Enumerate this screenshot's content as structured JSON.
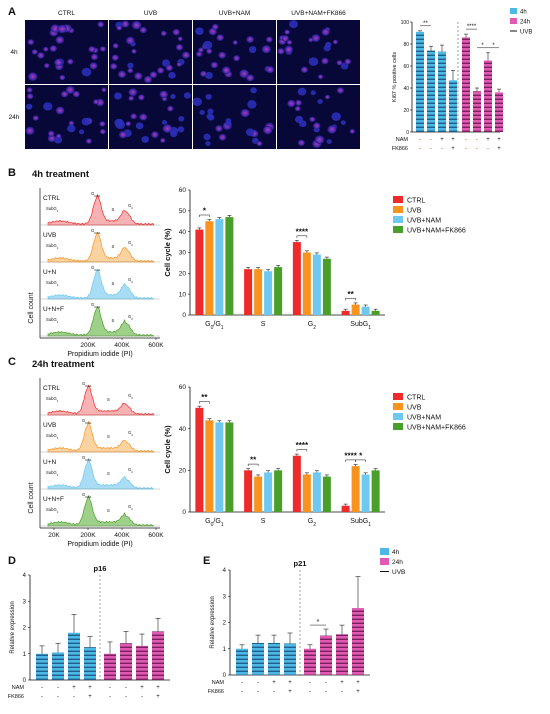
{
  "panels": {
    "A": "A",
    "B": "B",
    "C": "C",
    "D": "D",
    "E": "E"
  },
  "colors": {
    "ctrl": "#ee2b2b",
    "uvb": "#f7931e",
    "nam": "#6fc8f0",
    "fk866": "#4a9e2a",
    "blue4h": "#4bb8e6",
    "pink24h": "#e05ab4",
    "nuclei": "#2a2fb8",
    "ki67": "#d63ca4"
  },
  "micrographs": {
    "columns": [
      "CTRL",
      "UVB",
      "UVB+NAM",
      "UVB+NAM+FK866"
    ],
    "rows": [
      "4h",
      "24h"
    ]
  },
  "ki67_chart": {
    "ylabel": "Ki67 % positive cells",
    "yticks": [
      "0",
      "20",
      "40",
      "60",
      "80",
      "100"
    ],
    "ylim": [
      0,
      100
    ],
    "legend": [
      "4h",
      "24h",
      "UVB"
    ],
    "groups": [
      {
        "name": "4h",
        "values": [
          91,
          74,
          73,
          47
        ],
        "errors": [
          1,
          4,
          6,
          9
        ]
      },
      {
        "name": "24h",
        "values": [
          86,
          37,
          65,
          36
        ],
        "errors": [
          3,
          3,
          7,
          3
        ]
      }
    ],
    "sig": [
      {
        "text": "**",
        "group": 0,
        "from": 0,
        "to": 1
      },
      {
        "text": "****",
        "group": 1,
        "from": 0,
        "to": 1
      },
      {
        "text": "*",
        "group": 1,
        "from": 1,
        "to": 2
      },
      {
        "text": "*",
        "group": 1,
        "from": 2,
        "to": 3
      }
    ],
    "table": {
      "rows": [
        {
          "label": "NAM",
          "cells": [
            "-",
            "-",
            "+",
            "+",
            "-",
            "-",
            "+",
            "+"
          ]
        },
        {
          "label": "FK866",
          "cells": [
            "-",
            "-",
            "-",
            "+",
            "-",
            "-",
            "-",
            "+"
          ]
        }
      ]
    }
  },
  "section_b": {
    "title": "4h treatment",
    "hist_labels": [
      "CTRL",
      "UVB",
      "U+N",
      "U+N+F"
    ],
    "hist_ylabel": "Cell count",
    "hist_xlabel": "Propidium iodide (PI)",
    "hist_xticks": [
      "200K",
      "400K",
      "600K"
    ],
    "peak_labels": [
      "SubG1",
      "G0/G1",
      "S",
      "G2"
    ]
  },
  "section_c": {
    "title": "24h treatment",
    "hist_labels": [
      "CTRL",
      "UVB",
      "U+N",
      "U+N+F"
    ],
    "hist_ylabel": "Cell count",
    "hist_xlabel": "Propidium iodide (PI)",
    "hist_xticks": [
      "20K",
      "200K",
      "400K",
      "600K"
    ],
    "peak_labels": [
      "SubG1",
      "G0/G1",
      "S",
      "G2"
    ]
  },
  "chart_data": [
    {
      "type": "bar",
      "id": "cellcycle-4h",
      "ylabel": "Cell cycle (%)",
      "ylim": [
        0,
        60
      ],
      "yticks": [
        0,
        10,
        20,
        30,
        40,
        50,
        60
      ],
      "categories": [
        "G0/G1",
        "S",
        "G2",
        "SubG1"
      ],
      "series": [
        {
          "name": "CTRL",
          "values": [
            41,
            22,
            35,
            2
          ]
        },
        {
          "name": "UVB",
          "values": [
            45,
            22,
            30,
            5
          ]
        },
        {
          "name": "UVB+NAM",
          "values": [
            46,
            21,
            29,
            4
          ]
        },
        {
          "name": "UVB+NAM+FK866",
          "values": [
            47,
            23,
            27,
            2
          ]
        }
      ],
      "sig": [
        {
          "text": "*",
          "category": 0,
          "from": 0,
          "to": 1
        },
        {
          "text": "****",
          "category": 2,
          "from": 0,
          "to": 1
        },
        {
          "text": "**",
          "category": 3,
          "from": 0,
          "to": 1
        }
      ]
    },
    {
      "type": "bar",
      "id": "cellcycle-24h",
      "ylabel": "Cell cycle (%)",
      "ylim": [
        0,
        60
      ],
      "yticks": [
        0,
        20,
        40,
        60
      ],
      "categories": [
        "G0/G1",
        "S",
        "G2",
        "SubG1"
      ],
      "series": [
        {
          "name": "CTRL",
          "values": [
            50,
            20,
            27,
            3
          ]
        },
        {
          "name": "UVB",
          "values": [
            44,
            17,
            18,
            22
          ]
        },
        {
          "name": "UVB+NAM",
          "values": [
            43,
            19,
            19,
            18
          ]
        },
        {
          "name": "UVB+NAM+FK866",
          "values": [
            43,
            20,
            17,
            20
          ]
        }
      ],
      "sig": [
        {
          "text": "**",
          "category": 0,
          "from": 0,
          "to": 1
        },
        {
          "text": "**",
          "category": 1,
          "from": 0,
          "to": 1
        },
        {
          "text": "****",
          "category": 2,
          "from": 0,
          "to": 1
        },
        {
          "text": "****",
          "category": 3,
          "from": 0,
          "to": 1
        },
        {
          "text": "*",
          "category": 3,
          "from": 1,
          "to": 2
        }
      ]
    },
    {
      "type": "bar",
      "id": "p16",
      "title": "p16",
      "ylabel": "Relative expression",
      "ylim": [
        0,
        4
      ],
      "yticks": [
        "0",
        "1",
        "2",
        "3",
        "4"
      ],
      "groups": [
        {
          "name": "4h",
          "values": [
            1.0,
            1.05,
            1.8,
            1.25
          ],
          "errors": [
            0.3,
            0.35,
            0.7,
            0.4
          ]
        },
        {
          "name": "24h",
          "values": [
            1.0,
            1.4,
            1.3,
            1.85
          ],
          "errors": [
            0.45,
            0.45,
            0.45,
            0.5
          ]
        }
      ],
      "table": {
        "rows": [
          {
            "label": "NAM",
            "cells": [
              "-",
              "-",
              "+",
              "+",
              "-",
              "-",
              "+",
              "+"
            ]
          },
          {
            "label": "FK866",
            "cells": [
              "-",
              "-",
              "-",
              "+",
              "-",
              "-",
              "-",
              "+"
            ]
          }
        ]
      }
    },
    {
      "type": "bar",
      "id": "p21",
      "title": "p21",
      "ylabel": "Relative expression",
      "ylim": [
        0,
        4
      ],
      "yticks": [
        "0",
        "1",
        "2",
        "3",
        "4"
      ],
      "legend": [
        "4h",
        "24h",
        "UVB"
      ],
      "groups": [
        {
          "name": "4h",
          "values": [
            1.0,
            1.22,
            1.22,
            1.2
          ],
          "errors": [
            0.15,
            0.3,
            0.3,
            0.4
          ]
        },
        {
          "name": "24h",
          "values": [
            1.0,
            1.5,
            1.55,
            2.55
          ],
          "errors": [
            0.15,
            0.25,
            0.35,
            1.2
          ]
        }
      ],
      "sig": [
        {
          "text": "*",
          "group": 1,
          "from": 0,
          "to": 1
        }
      ],
      "table": {
        "rows": [
          {
            "label": "NAM",
            "cells": [
              "-",
              "-",
              "+",
              "+",
              "-",
              "-",
              "+",
              "+"
            ]
          },
          {
            "label": "FK866",
            "cells": [
              "-",
              "-",
              "-",
              "+",
              "-",
              "-",
              "-",
              "+"
            ]
          }
        ]
      }
    }
  ]
}
